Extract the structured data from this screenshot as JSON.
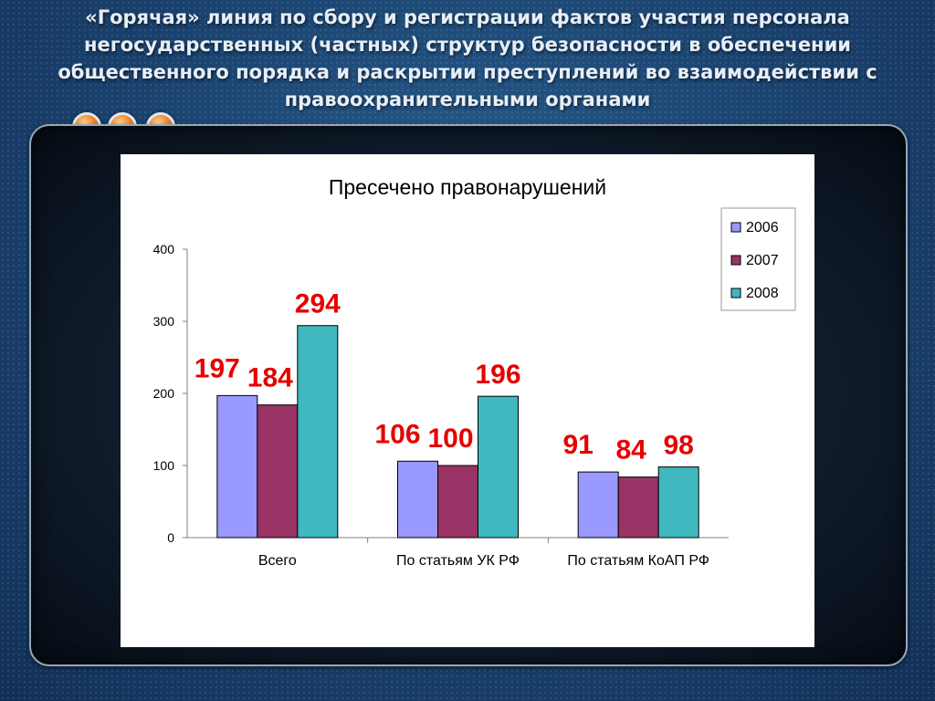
{
  "slide": {
    "title": "«Горячая» линия по сбору и регистрации фактов участия персонала негосударственных (частных) структур безопасности в обеспечении общественного порядка и раскрытии преступлений во взаимодействии с правоохранительными органами",
    "colors": {
      "background": "#1c4673",
      "title_text": "#e6eef7",
      "orb": "#f08a2c"
    }
  },
  "chart_data": {
    "type": "bar",
    "title": "Пресечено правонарушений",
    "categories": [
      "Всего",
      "По статьям УК РФ",
      "По статьям КоАП РФ"
    ],
    "series": [
      {
        "name": "2006",
        "values": [
          197,
          106,
          91
        ],
        "color": "#9999ff"
      },
      {
        "name": "2007",
        "values": [
          184,
          100,
          84
        ],
        "color": "#993366"
      },
      {
        "name": "2008",
        "values": [
          294,
          196,
          98
        ],
        "color": "#3fb8c0"
      }
    ],
    "ylim": [
      0,
      400
    ],
    "yticks": [
      0,
      100,
      200,
      300,
      400
    ],
    "xlabel": "",
    "ylabel": "",
    "legend": "top-right",
    "grid": false,
    "data_label_color": "#e60000"
  }
}
